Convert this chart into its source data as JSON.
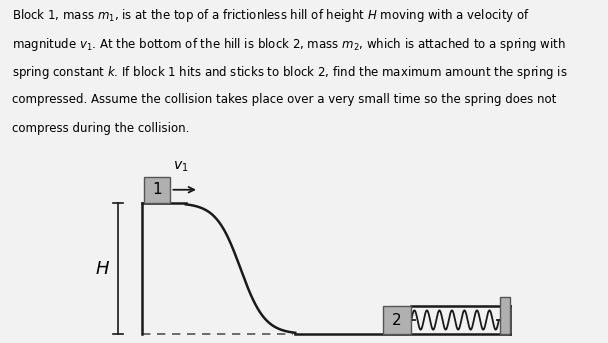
{
  "fig_width": 6.08,
  "fig_height": 3.43,
  "dpi": 100,
  "bg_color": "#f2f2f2",
  "text_color": "#000000",
  "hill_color": "#1a1a1a",
  "block_color": "#b0b0b0",
  "block_edge_color": "#555555",
  "dashed_color": "#555555",
  "wall_color": "#b0b0b0",
  "H_label": "$H$",
  "v1_label": "$v_1$",
  "block1_label": "1",
  "block2_label": "2",
  "text_lines": [
    "Block 1, mass $m_1$, is at the top of a frictionless hill of height $H$ moving with a velocity of",
    "magnitude $v_1$. At the bottom of the hill is block 2, mass $m_2$, which is attached to a spring with",
    "spring constant $k$. If block 1 hits and sticks to block 2, find the maximum amount the spring is",
    "compressed. Assume the collision takes place over a very small time so the spring does not",
    "compress during the collision."
  ]
}
